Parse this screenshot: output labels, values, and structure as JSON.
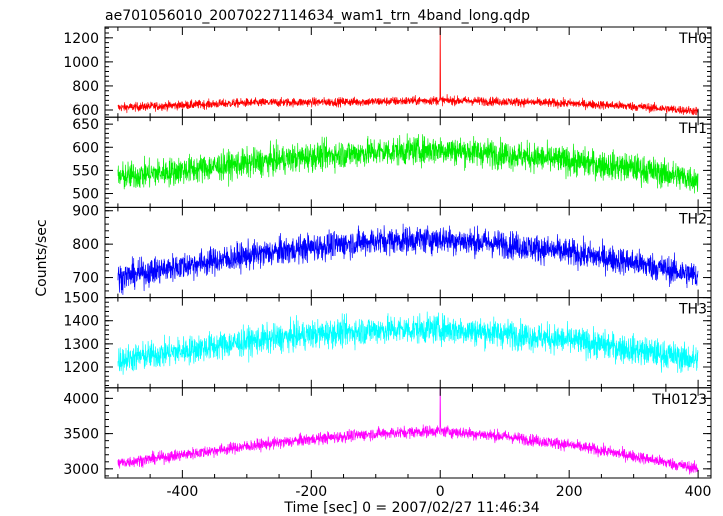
{
  "title": "ae701056010_20070227114634_wam1_trn_4band_long.qdp",
  "chart_data": {
    "type": "line",
    "title": "ae701056010_20070227114634_wam1_trn_4band_long.qdp",
    "xlabel": "Time [sec] 0 = 2007/02/27 11:46:34",
    "ylabel": "Counts/sec",
    "xlim": [
      -520,
      420
    ],
    "xticks": [
      -400,
      -200,
      0,
      200,
      400
    ],
    "panels": [
      {
        "name": "TH0",
        "color": "#ff0000",
        "ylim": [
          540,
          1290
        ],
        "yticks": [
          600,
          800,
          1000,
          1200
        ],
        "x": [
          -500,
          -400,
          -300,
          -200,
          -100,
          0,
          100,
          200,
          300,
          400
        ],
        "y": [
          620,
          640,
          660,
          665,
          670,
          680,
          670,
          655,
          630,
          590
        ],
        "noise": 35,
        "spike": {
          "x": 0,
          "y": 1290
        }
      },
      {
        "name": "TH1",
        "color": "#00ee00",
        "ylim": [
          470,
          665
        ],
        "yticks": [
          500,
          550,
          600,
          650
        ],
        "x": [
          -500,
          -400,
          -300,
          -200,
          -100,
          0,
          100,
          200,
          300,
          400
        ],
        "y": [
          535,
          550,
          565,
          580,
          590,
          595,
          585,
          570,
          555,
          530
        ],
        "noise": 30
      },
      {
        "name": "TH2",
        "color": "#0000ff",
        "ylim": [
          640,
          910
        ],
        "yticks": [
          700,
          800,
          900
        ],
        "x": [
          -500,
          -400,
          -300,
          -200,
          -100,
          0,
          100,
          200,
          300,
          400
        ],
        "y": [
          700,
          735,
          765,
          790,
          810,
          815,
          800,
          775,
          745,
          705
        ],
        "noise": 40
      },
      {
        "name": "TH3",
        "color": "#00ffff",
        "ylim": [
          1110,
          1500
        ],
        "yticks": [
          1200,
          1300,
          1400,
          1500
        ],
        "x": [
          -500,
          -400,
          -300,
          -200,
          -100,
          0,
          100,
          200,
          300,
          400
        ],
        "y": [
          1230,
          1270,
          1310,
          1340,
          1360,
          1365,
          1345,
          1315,
          1275,
          1230
        ],
        "noise": 60
      },
      {
        "name": "TH0123",
        "color": "#ff00ff",
        "ylim": [
          2870,
          4150
        ],
        "yticks": [
          3000,
          3500,
          4000
        ],
        "x": [
          -500,
          -400,
          -300,
          -200,
          -100,
          0,
          100,
          200,
          300,
          400
        ],
        "y": [
          3080,
          3200,
          3320,
          3420,
          3500,
          3540,
          3460,
          3340,
          3180,
          3000
        ],
        "noise": 80,
        "spike": {
          "x": 0,
          "y": 4150
        }
      }
    ]
  }
}
